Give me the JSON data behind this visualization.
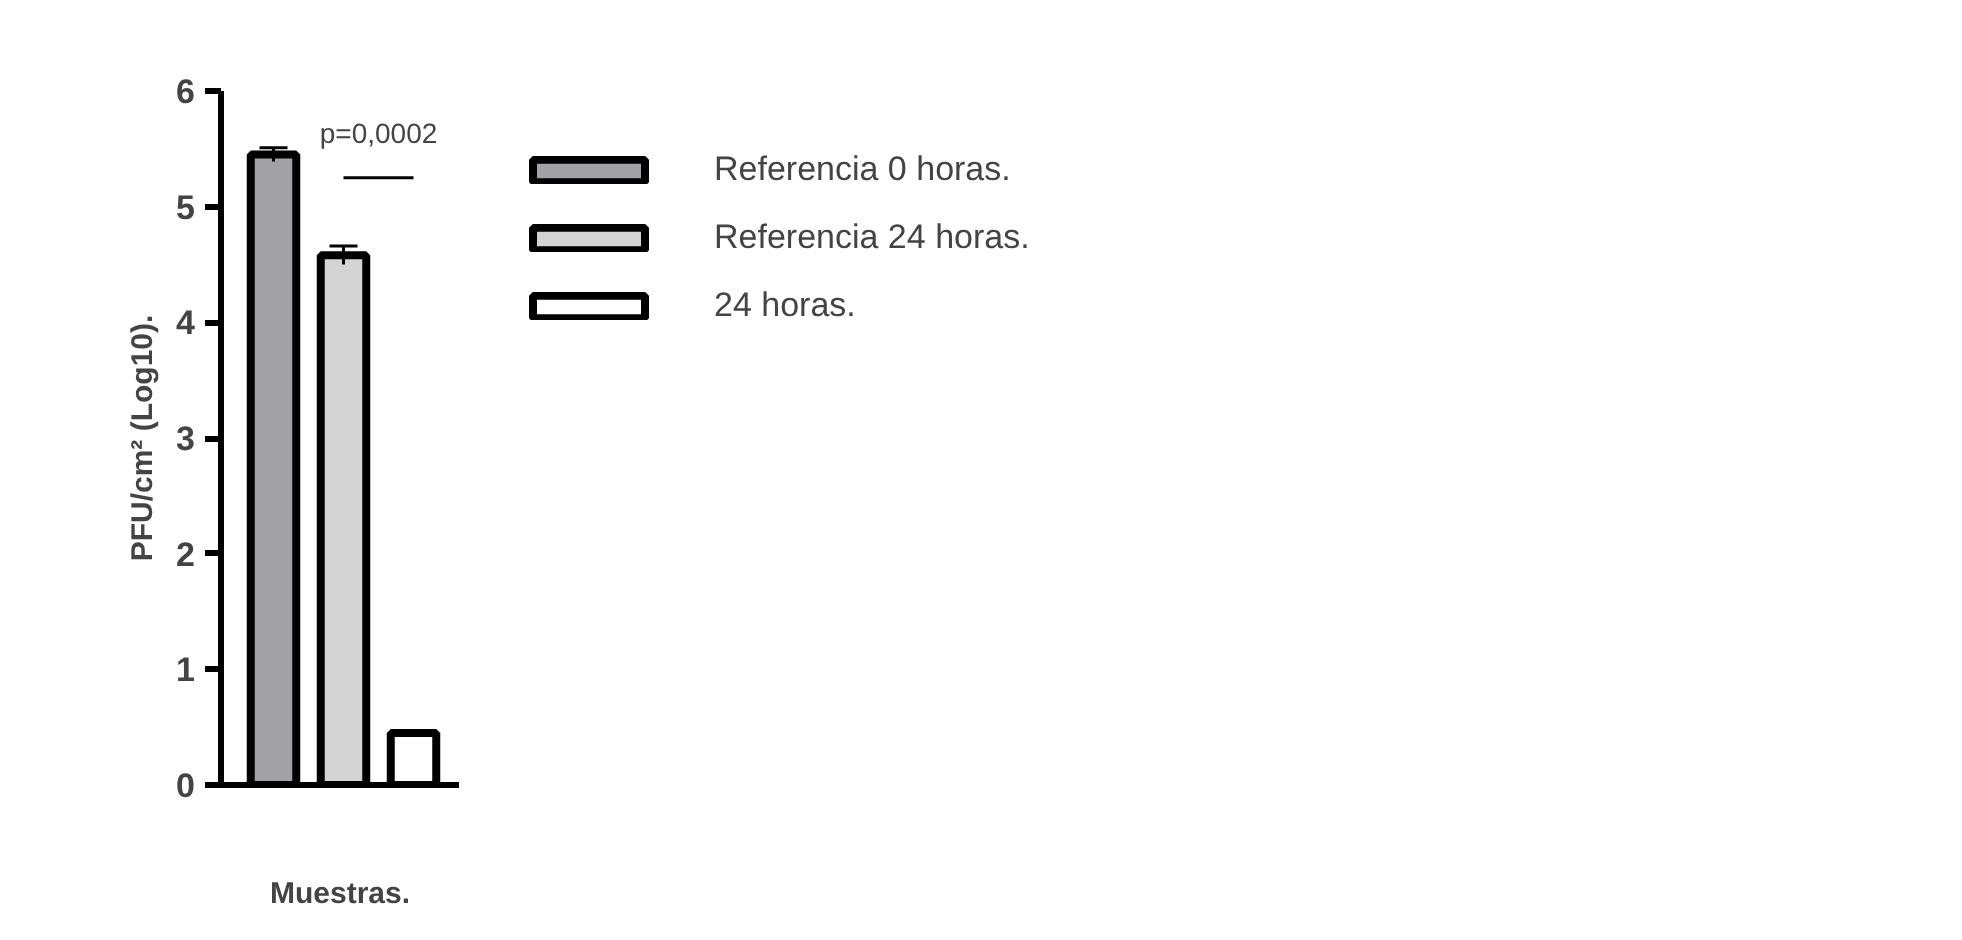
{
  "chart_data": {
    "type": "bar",
    "xlabel": "Muestras.",
    "ylabel": "PFU/cm² (Log10).",
    "categories": [
      null,
      null,
      null
    ],
    "series": [
      {
        "name": "Referencia 0 horas.",
        "color": "#a2a1a6",
        "values": [
          5.45,
          null,
          null
        ],
        "errors": [
          0.06,
          null,
          null
        ]
      },
      {
        "name": "Referencia 24 horas.",
        "color": "#d4d4d4",
        "values": [
          null,
          4.58,
          null
        ],
        "errors": [
          null,
          0.08,
          null
        ]
      },
      {
        "name": "24 horas.",
        "color": "#ffffff",
        "values": [
          null,
          null,
          0.45
        ],
        "errors": [
          null,
          null,
          null
        ]
      }
    ],
    "ylim": [
      0,
      6
    ],
    "yticks": [
      0,
      1,
      2,
      3,
      4,
      5,
      6
    ],
    "annotations": [
      "p=0,0002"
    ],
    "legend": "right",
    "grid": false,
    "tick_labels": "y"
  }
}
